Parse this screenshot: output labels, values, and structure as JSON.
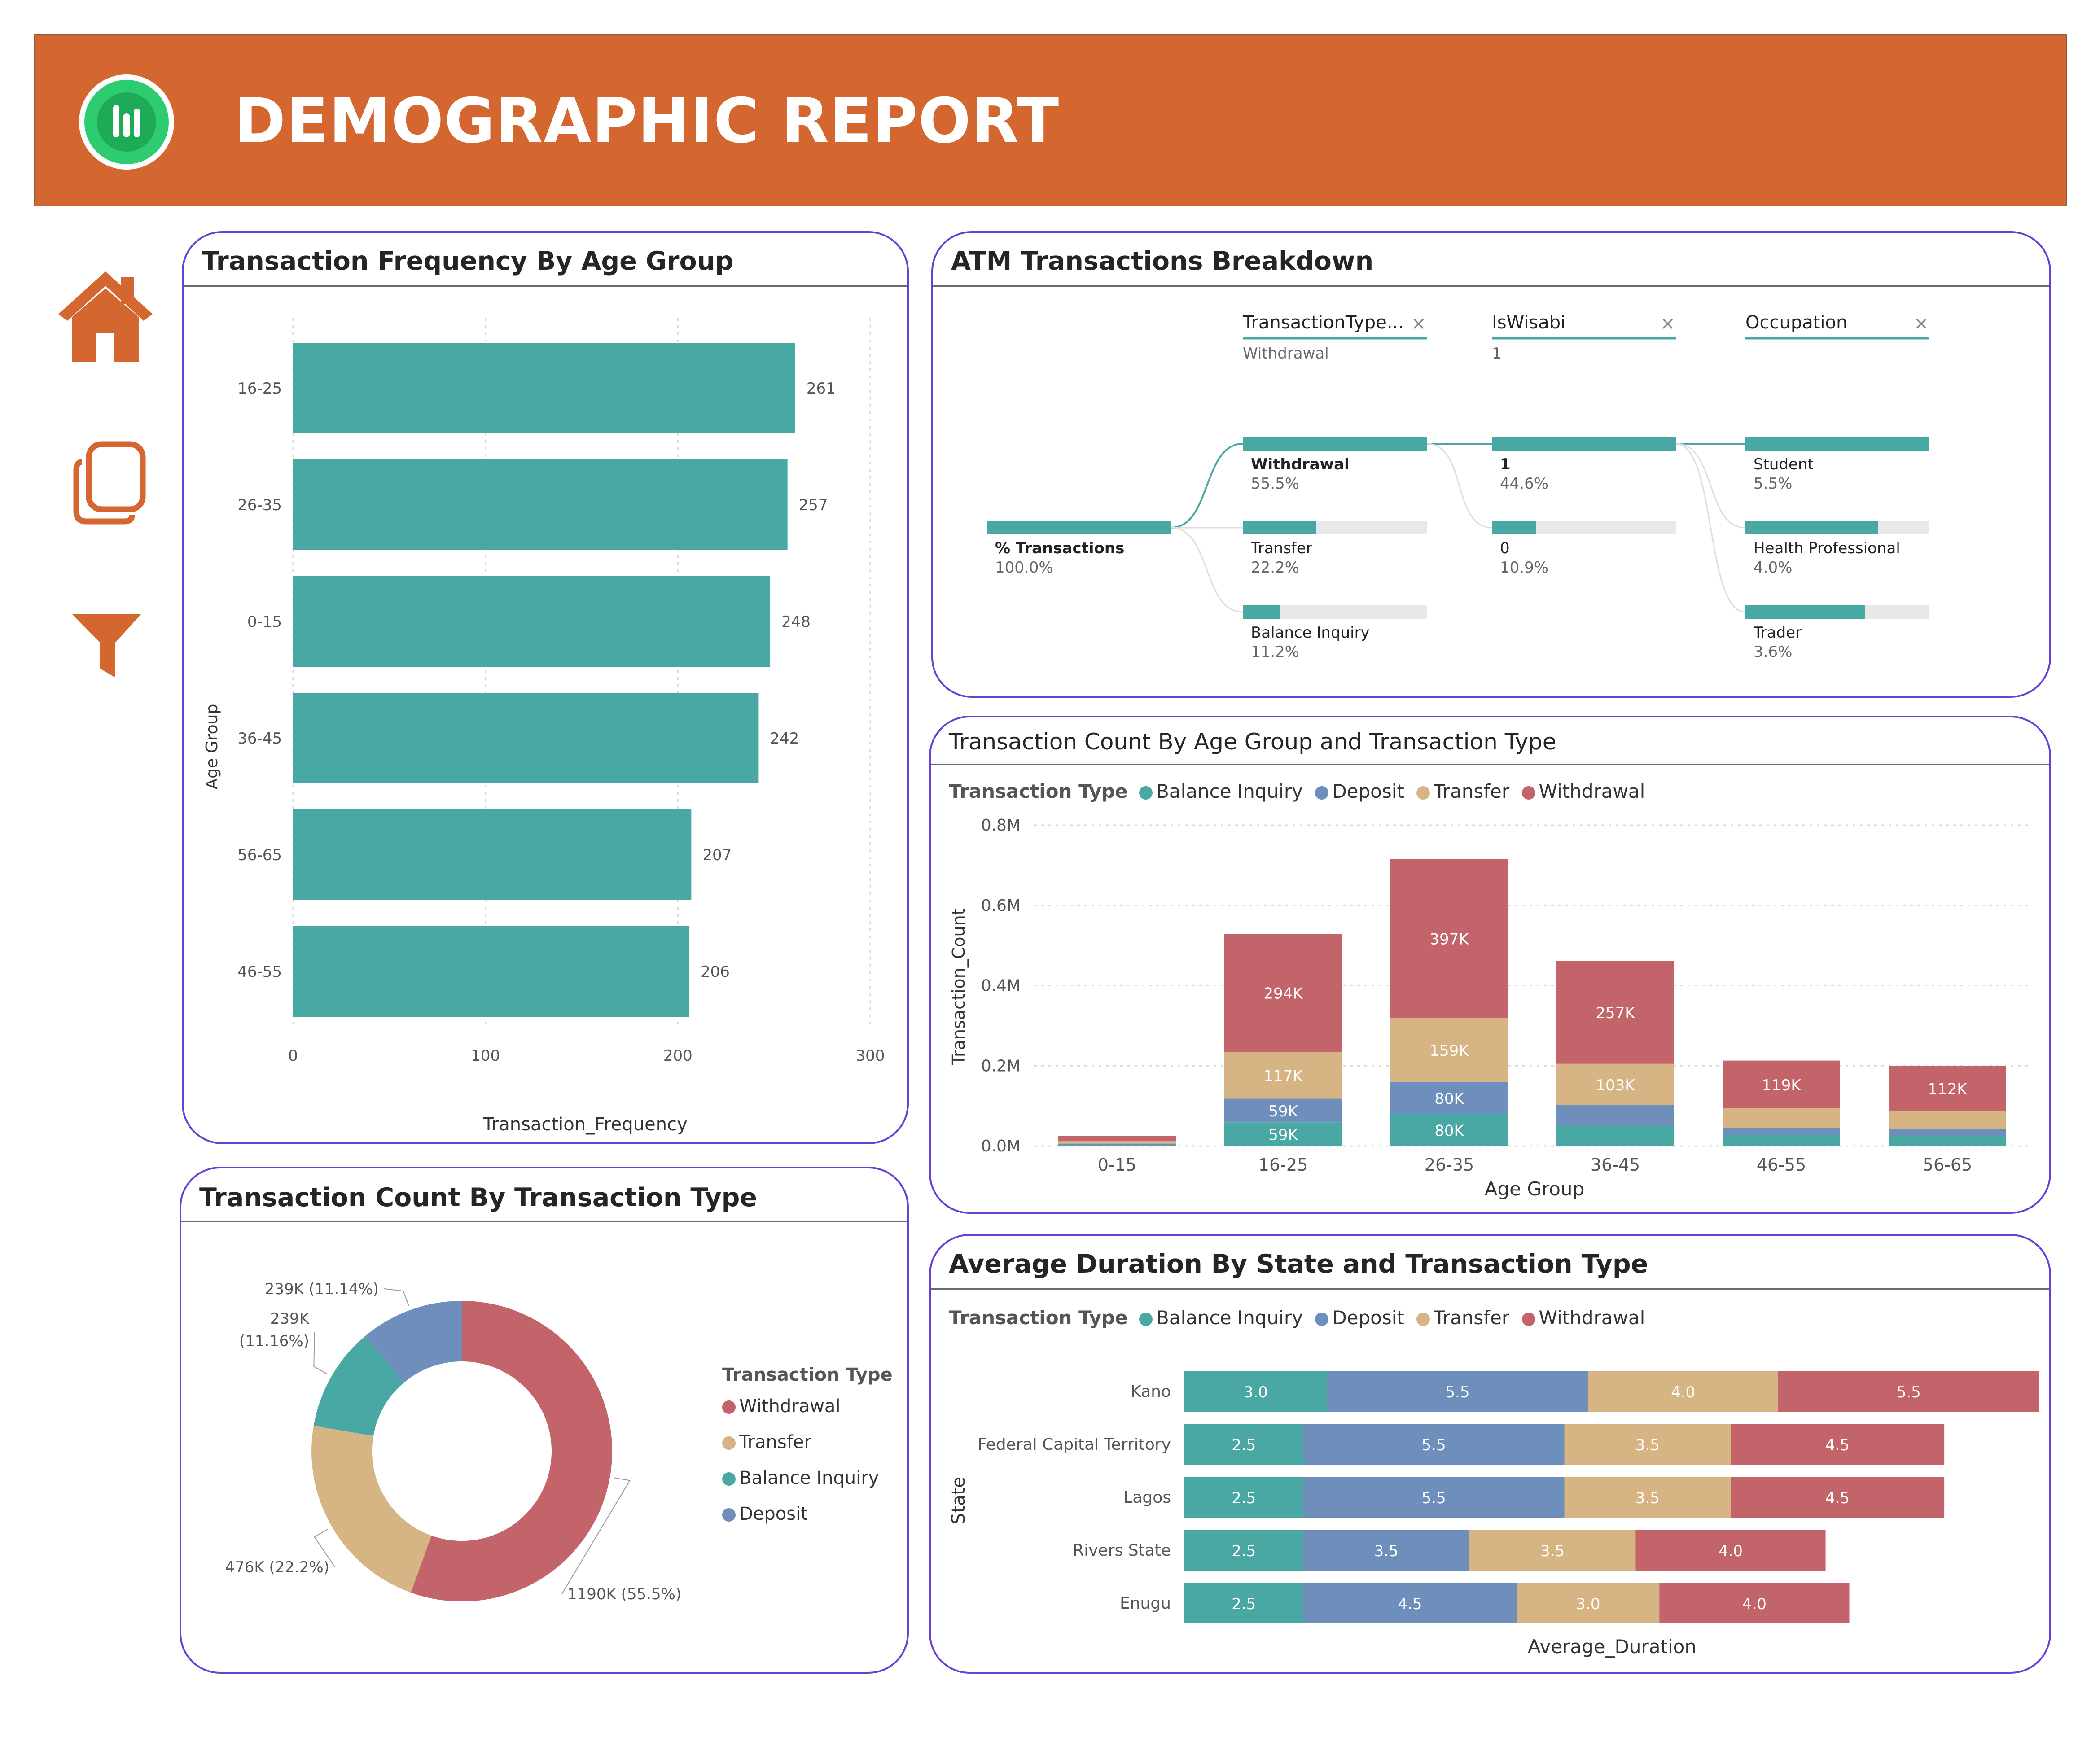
{
  "header": {
    "title": "DEMOGRAPHIC REPORT"
  },
  "colors": {
    "header_bg": "#d4662f",
    "teal": "#4aa8a4",
    "blue": "#6e8ebb",
    "tan": "#d6b483",
    "red": "#c3636a",
    "panel_border": "#6a3fd4",
    "logo_green": "#2ecc71"
  },
  "sidebar": {
    "icons": [
      "home-icon",
      "pages-icon",
      "filter-icon"
    ]
  },
  "age_freq": {
    "title": "Transaction Frequency By Age Group",
    "xlabel": "Transaction_Frequency",
    "ylabel": "Age Group",
    "ticks": [
      "0",
      "100",
      "200",
      "300"
    ]
  },
  "breakdown": {
    "title": "ATM Transactions Breakdown",
    "levels": [
      {
        "name": "TransactionType...",
        "filter": "Withdrawal"
      },
      {
        "name": "IsWisabi",
        "filter": "1"
      },
      {
        "name": "Occupation",
        "filter": ""
      }
    ],
    "root": {
      "label": "% Transactions",
      "value": "100.0%",
      "fraction": 1.0
    },
    "type_nodes": [
      {
        "label": "Withdrawal",
        "value": "55.5%",
        "fraction": 1.0,
        "bold": true
      },
      {
        "label": "Transfer",
        "value": "22.2%",
        "fraction": 0.4
      },
      {
        "label": "Balance Inquiry",
        "value": "11.2%",
        "fraction": 0.2
      }
    ],
    "wisabi_nodes": [
      {
        "label": "1",
        "value": "44.6%",
        "fraction": 1.0,
        "bold": true
      },
      {
        "label": "0",
        "value": "10.9%",
        "fraction": 0.24
      }
    ],
    "occupation_nodes": [
      {
        "label": "Student",
        "value": "5.5%",
        "fraction": 1.0
      },
      {
        "label": "Health Professional",
        "value": "4.0%",
        "fraction": 0.72
      },
      {
        "label": "Trader",
        "value": "3.6%",
        "fraction": 0.65
      }
    ]
  },
  "age_type": {
    "title": "Transaction Count By Age Group and Transaction Type",
    "legend_title": "Transaction Type",
    "legend": [
      "Balance Inquiry",
      "Deposit",
      "Transfer",
      "Withdrawal"
    ],
    "ylabel": "Transaction_Count",
    "xlabel": "Age Group",
    "yticks": [
      "0.0M",
      "0.2M",
      "0.4M",
      "0.6M",
      "0.8M"
    ]
  },
  "type_count": {
    "title": "Transaction Count By Transaction Type",
    "legend_title": "Transaction Type",
    "legend": [
      "Withdrawal",
      "Transfer",
      "Balance Inquiry",
      "Deposit"
    ]
  },
  "duration": {
    "title": "Average Duration By State and Transaction Type",
    "legend_title": "Transaction Type",
    "legend": [
      "Balance Inquiry",
      "Deposit",
      "Transfer",
      "Withdrawal"
    ],
    "ylabel": "State",
    "xlabel": "Average_Duration"
  },
  "chart_data": [
    {
      "type": "bar",
      "orientation": "horizontal",
      "title": "Transaction Frequency By Age Group",
      "categories": [
        "16-25",
        "26-35",
        "0-15",
        "36-45",
        "56-65",
        "46-55"
      ],
      "values": [
        261,
        257,
        248,
        242,
        207,
        206
      ],
      "xlabel": "Transaction_Frequency",
      "ylabel": "Age Group",
      "xlim": [
        0,
        300
      ],
      "grid": true
    },
    {
      "type": "bar",
      "stacked": true,
      "title": "Transaction Count By Age Group and Transaction Type",
      "categories": [
        "0-15",
        "16-25",
        "26-35",
        "36-45",
        "46-55",
        "56-65"
      ],
      "series": [
        {
          "name": "Balance Inquiry",
          "values": [
            3000,
            59000,
            80000,
            50000,
            27000,
            25000
          ],
          "labels": [
            "",
            "59K",
            "80K",
            "",
            "",
            ""
          ]
        },
        {
          "name": "Deposit",
          "values": [
            3000,
            59000,
            80000,
            52000,
            18000,
            17000
          ],
          "labels": [
            "",
            "59K",
            "80K",
            "",
            "",
            ""
          ]
        },
        {
          "name": "Transfer",
          "values": [
            6000,
            117000,
            159000,
            103000,
            49000,
            46000
          ],
          "labels": [
            "",
            "117K",
            "159K",
            "103K",
            "",
            ""
          ]
        },
        {
          "name": "Withdrawal",
          "values": [
            13000,
            294000,
            397000,
            257000,
            119000,
            112000
          ],
          "labels": [
            "",
            "294K",
            "397K",
            "257K",
            "119K",
            "112K"
          ]
        }
      ],
      "xlabel": "Age Group",
      "ylabel": "Transaction_Count",
      "ylim": [
        0,
        800000
      ],
      "legend": "top-left"
    },
    {
      "type": "pie",
      "donut": true,
      "title": "Transaction Count By Transaction Type",
      "categories": [
        "Withdrawal",
        "Transfer",
        "Balance Inquiry",
        "Deposit"
      ],
      "values": [
        1190000,
        476000,
        239000,
        239000
      ],
      "labels": [
        "1190K (55.5%)",
        "476K (22.2%)",
        "239K (11.16%)",
        "239K (11.14%)"
      ],
      "legend": "right"
    },
    {
      "type": "bar",
      "orientation": "horizontal",
      "stacked": true,
      "title": "Average Duration By State and Transaction Type",
      "categories": [
        "Kano",
        "Federal Capital Territory",
        "Lagos",
        "Rivers State",
        "Enugu"
      ],
      "series": [
        {
          "name": "Balance Inquiry",
          "values": [
            3.0,
            2.5,
            2.5,
            2.5,
            2.5
          ]
        },
        {
          "name": "Deposit",
          "values": [
            5.5,
            5.5,
            5.5,
            3.5,
            4.5
          ]
        },
        {
          "name": "Transfer",
          "values": [
            4.0,
            3.5,
            3.5,
            3.5,
            3.0
          ]
        },
        {
          "name": "Withdrawal",
          "values": [
            5.5,
            4.5,
            4.5,
            4.0,
            4.0
          ]
        }
      ],
      "xlabel": "Average_Duration",
      "ylabel": "State",
      "legend": "top-left"
    }
  ]
}
